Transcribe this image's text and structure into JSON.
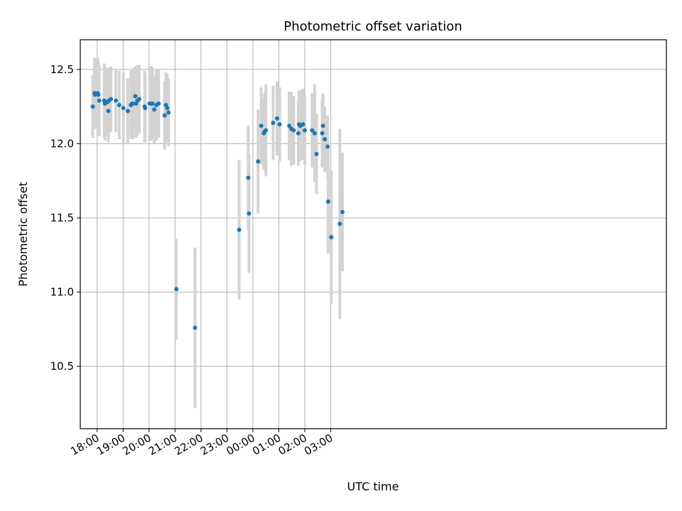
{
  "chart_data": {
    "type": "scatter",
    "title": "Photometric offset variation",
    "xlabel": "UTC time",
    "ylabel": "Photometric offset",
    "x_unit": "hours since 00:00 UTC (negative = previous day)",
    "xlim": [
      -18.65,
      3.93
    ],
    "ylim": [
      10.08,
      12.7
    ],
    "grid": true,
    "legend": "none",
    "x_ticks": [
      -18,
      -17,
      -16,
      -15,
      -14,
      -13,
      -12,
      -11,
      -10,
      -9
    ],
    "x_tick_labels": [
      "18:00",
      "19:00",
      "20:00",
      "21:00",
      "22:00",
      "23:00",
      "00:00",
      "01:00",
      "02:00",
      "03:00"
    ],
    "y_ticks": [
      10.5,
      11.0,
      11.5,
      12.0,
      12.5
    ],
    "y_tick_labels": [
      "10.5",
      "11.0",
      "11.5",
      "12.0",
      "12.5"
    ],
    "colors": {
      "point": "#1f77b4",
      "errorbar": "#d3d3d3",
      "grid": "#b0b0b0",
      "axes": "#000000"
    },
    "series": [
      {
        "x": [
          17.83,
          17.9,
          17.92,
          18.02,
          18.04,
          18.08,
          18.27,
          18.3,
          18.4,
          18.43,
          18.45,
          18.53,
          18.72,
          18.85,
          19.01,
          19.18,
          19.3,
          19.35,
          19.38,
          19.47,
          19.5,
          19.55,
          19.62,
          19.83,
          19.85,
          20.02,
          20.1,
          20.13,
          20.2,
          20.28,
          20.37,
          20.6,
          20.65,
          20.7,
          20.75,
          21.05,
          21.77,
          23.47,
          23.82,
          23.85,
          24.2,
          24.32,
          24.42,
          24.45,
          24.5,
          24.78,
          24.93,
          25.03,
          25.4,
          25.48,
          25.57,
          25.75,
          25.78,
          25.82,
          25.93,
          26.0,
          26.28,
          26.38,
          26.45,
          26.67,
          26.7,
          26.77,
          26.88,
          26.9,
          27.02,
          27.35,
          27.45
        ],
        "y": [
          12.25,
          12.34,
          12.33,
          12.34,
          12.33,
          12.29,
          12.29,
          12.27,
          12.28,
          12.22,
          12.29,
          12.3,
          12.29,
          12.26,
          12.24,
          12.22,
          12.26,
          12.27,
          12.27,
          12.32,
          12.27,
          12.29,
          12.3,
          12.25,
          12.24,
          12.27,
          12.27,
          12.27,
          12.23,
          12.26,
          12.27,
          12.19,
          12.26,
          12.24,
          12.21,
          11.02,
          10.76,
          11.42,
          11.77,
          11.53,
          11.88,
          12.12,
          12.07,
          12.08,
          12.09,
          12.14,
          12.17,
          12.13,
          12.12,
          12.1,
          12.09,
          12.07,
          12.13,
          12.12,
          12.13,
          12.09,
          12.09,
          12.07,
          11.93,
          12.07,
          12.12,
          12.03,
          11.98,
          11.61,
          11.37,
          11.46,
          11.54
        ],
        "yerr": [
          0.21,
          0.24,
          0.23,
          0.24,
          0.23,
          0.24,
          0.25,
          0.25,
          0.23,
          0.21,
          0.22,
          0.22,
          0.21,
          0.23,
          0.24,
          0.22,
          0.23,
          0.23,
          0.24,
          0.2,
          0.23,
          0.24,
          0.23,
          0.24,
          0.23,
          0.25,
          0.25,
          0.24,
          0.23,
          0.24,
          0.23,
          0.23,
          0.22,
          0.23,
          0.23,
          0.34,
          0.54,
          0.47,
          0.35,
          0.4,
          0.35,
          0.26,
          0.24,
          0.26,
          0.31,
          0.25,
          0.25,
          0.25,
          0.23,
          0.25,
          0.23,
          0.22,
          0.23,
          0.24,
          0.24,
          0.23,
          0.25,
          0.33,
          0.27,
          0.23,
          0.22,
          0.22,
          0.21,
          0.35,
          0.45,
          0.64,
          0.4
        ]
      }
    ]
  }
}
